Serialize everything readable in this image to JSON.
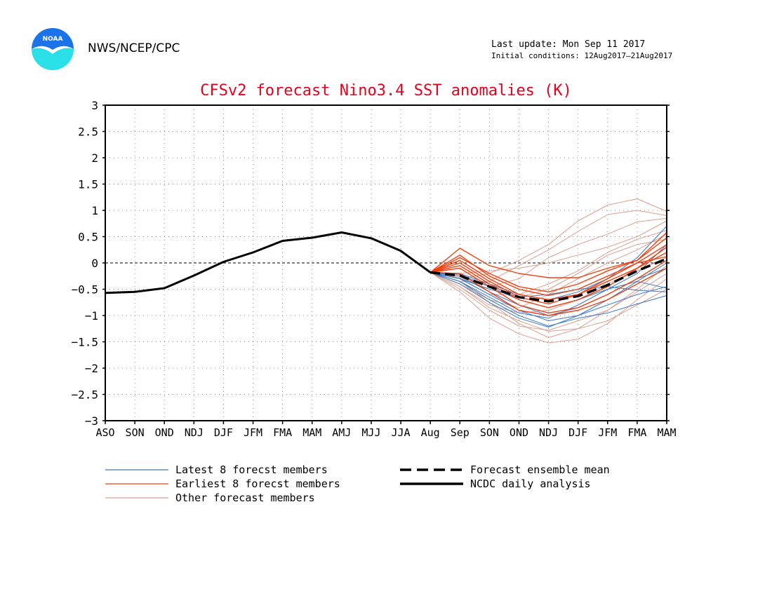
{
  "header": {
    "org": "NWS/NCEP/CPC",
    "last_update": "Last update: Mon Sep 11 2017",
    "initial_conditions": "Initial conditions: 12Aug2017–21Aug2017",
    "logo_text": "NOAA"
  },
  "colors": {
    "title": "#e8001c",
    "latest": "#3a78c9",
    "earliest": "#f04010",
    "other": "#d9a090",
    "analysis": "#000000",
    "logo_blue": "#1a73e8",
    "logo_cyan": "#29e0e8"
  },
  "chart_data": {
    "type": "line",
    "title": "CFSv2 forecast Nino3.4 SST anomalies (K)",
    "xlabel": "",
    "ylabel": "",
    "categories": [
      "ASO",
      "SON",
      "OND",
      "NDJ",
      "DJF",
      "JFM",
      "FMA",
      "MAM",
      "AMJ",
      "MJJ",
      "JJA",
      "Aug",
      "Sep",
      "SON",
      "OND",
      "NDJ",
      "DJF",
      "JFM",
      "FMA",
      "MAM"
    ],
    "ylim": [
      -3,
      3
    ],
    "yticks": [
      "3",
      "2.5",
      "2",
      "1.5",
      "1",
      "0.5",
      "0",
      "−0.5",
      "−1",
      "−1.5",
      "−2",
      "−2.5",
      "−3"
    ],
    "grid": true,
    "legend_position": "bottom",
    "series": [
      {
        "name": "NCDC daily analysis",
        "style": "solid-black",
        "values": [
          -0.57,
          -0.55,
          -0.48,
          -0.24,
          0.02,
          0.2,
          0.42,
          0.48,
          0.58,
          0.47,
          0.23,
          -0.18,
          null,
          null,
          null,
          null,
          null,
          null,
          null,
          null
        ]
      },
      {
        "name": "Forecast ensemble mean",
        "style": "dashed-black",
        "values": [
          null,
          null,
          null,
          null,
          null,
          null,
          null,
          null,
          null,
          null,
          null,
          -0.18,
          -0.24,
          -0.45,
          -0.65,
          -0.73,
          -0.63,
          -0.42,
          -0.15,
          0.08
        ]
      },
      {
        "name": "Latest 8 forecst members",
        "style": "latest",
        "members": [
          [
            -0.18,
            -0.35,
            -0.7,
            -1.0,
            -1.2,
            -1.05,
            -0.95,
            -0.78,
            -0.62
          ],
          [
            -0.18,
            -0.3,
            -0.6,
            -0.9,
            -1.1,
            -1.0,
            -0.8,
            -0.6,
            -0.45
          ],
          [
            -0.18,
            -0.25,
            -0.55,
            -0.8,
            -1.0,
            -0.85,
            -0.6,
            -0.3,
            -0.1
          ],
          [
            -0.18,
            -0.4,
            -0.75,
            -1.05,
            -1.22,
            -1.0,
            -0.7,
            -0.35,
            0.0
          ],
          [
            -0.18,
            -0.22,
            -0.45,
            -0.7,
            -0.85,
            -0.7,
            -0.5,
            -0.35,
            -0.48
          ],
          [
            -0.18,
            -0.3,
            -0.5,
            -0.65,
            -0.6,
            -0.5,
            -0.45,
            -0.52,
            -0.55
          ],
          [
            -0.18,
            -0.2,
            -0.4,
            -0.6,
            -0.7,
            -0.55,
            -0.3,
            0.1,
            0.7
          ],
          [
            -0.18,
            -0.35,
            -0.65,
            -0.95,
            -1.05,
            -0.8,
            -0.5,
            -0.2,
            0.35
          ]
        ]
      },
      {
        "name": "Earliest 8 forecst members",
        "style": "earliest",
        "members": [
          [
            -0.18,
            0.28,
            -0.05,
            -0.2,
            -0.28,
            -0.28,
            -0.1,
            0.05,
            0.58
          ],
          [
            -0.18,
            0.1,
            -0.2,
            -0.45,
            -0.55,
            -0.4,
            -0.15,
            0.05,
            0.48
          ],
          [
            -0.18,
            0.05,
            -0.3,
            -0.6,
            -0.7,
            -0.6,
            -0.35,
            -0.1,
            0.3
          ],
          [
            -0.18,
            -0.05,
            -0.4,
            -0.7,
            -0.85,
            -0.7,
            -0.45,
            -0.1,
            0.2
          ],
          [
            -0.18,
            -0.1,
            -0.45,
            -0.8,
            -0.95,
            -0.85,
            -0.6,
            -0.3,
            0.05
          ],
          [
            -0.18,
            0.0,
            -0.35,
            -0.65,
            -0.78,
            -0.6,
            -0.3,
            0.0,
            0.12
          ],
          [
            -0.18,
            -0.2,
            -0.55,
            -0.9,
            -1.0,
            -0.9,
            -0.7,
            -0.4,
            -0.1
          ],
          [
            -0.18,
            0.15,
            -0.25,
            -0.5,
            -0.62,
            -0.5,
            -0.25,
            0.0,
            0.35
          ]
        ]
      },
      {
        "name": "Other forecast members",
        "style": "other",
        "members": [
          [
            -0.18,
            -0.3,
            -0.2,
            0.05,
            0.35,
            0.8,
            1.1,
            1.22,
            0.98
          ],
          [
            -0.18,
            -0.35,
            -0.35,
            -0.05,
            0.25,
            0.6,
            0.92,
            1.0,
            0.9
          ],
          [
            -0.18,
            -0.25,
            -0.45,
            -0.3,
            0.1,
            0.35,
            0.55,
            0.78,
            0.85
          ],
          [
            -0.18,
            -0.5,
            -0.9,
            -1.2,
            -1.28,
            -1.1,
            -0.9,
            -0.5,
            -0.05
          ],
          [
            -0.18,
            -0.55,
            -1.05,
            -1.35,
            -1.52,
            -1.45,
            -1.15,
            -0.7,
            -0.3
          ],
          [
            -0.18,
            -0.45,
            -0.85,
            -1.1,
            -1.3,
            -1.25,
            -1.1,
            -0.8,
            -0.5
          ],
          [
            -0.18,
            -0.3,
            -0.6,
            -0.6,
            -0.4,
            -0.15,
            0.2,
            0.45,
            0.62
          ],
          [
            -0.18,
            -0.2,
            -0.15,
            -0.1,
            0.0,
            0.15,
            0.3,
            0.5,
            0.8
          ],
          [
            -0.18,
            -0.4,
            -0.7,
            -0.85,
            -0.6,
            -0.3,
            0.0,
            0.25,
            0.55
          ],
          [
            -0.18,
            -0.35,
            -0.75,
            -1.15,
            -1.42,
            -1.25,
            -0.9,
            -0.55,
            -0.2
          ],
          [
            -0.18,
            -0.28,
            -0.5,
            -0.65,
            -0.5,
            -0.2,
            0.15,
            0.35,
            0.45
          ],
          [
            -0.18,
            -0.45,
            -0.8,
            -0.95,
            -0.9,
            -0.7,
            -0.4,
            -0.15,
            0.1
          ]
        ]
      }
    ],
    "legend": [
      {
        "label": "Latest 8 forecst members",
        "style": "latest"
      },
      {
        "label": "Earliest 8 forecst members",
        "style": "earliest"
      },
      {
        "label": "Other forecast members",
        "style": "other"
      },
      {
        "label": "Forecast ensemble mean",
        "style": "dashed-black"
      },
      {
        "label": "NCDC daily analysis",
        "style": "solid-black"
      }
    ]
  }
}
